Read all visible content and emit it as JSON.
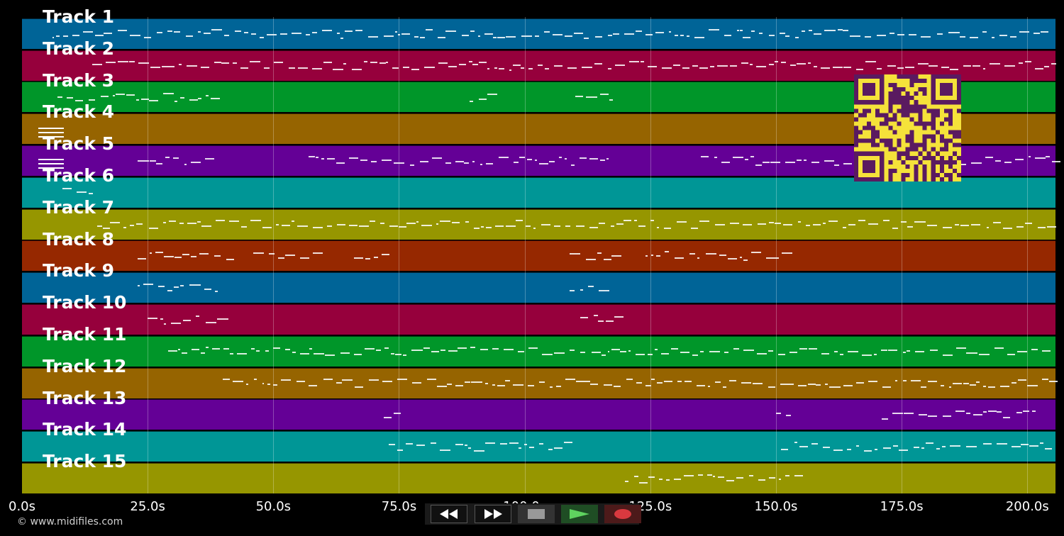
{
  "tracks": [
    {
      "label": "Track 1",
      "color": "#006497"
    },
    {
      "label": "Track 2",
      "color": "#96003c"
    },
    {
      "label": "Track 3",
      "color": "#009629"
    },
    {
      "label": "Track 4",
      "color": "#966400"
    },
    {
      "label": "Track 5",
      "color": "#640096"
    },
    {
      "label": "Track 6",
      "color": "#009696"
    },
    {
      "label": "Track 7",
      "color": "#969600"
    },
    {
      "label": "Track 8",
      "color": "#962800"
    },
    {
      "label": "Track 9",
      "color": "#006497"
    },
    {
      "label": "Track 10",
      "color": "#96003c"
    },
    {
      "label": "Track 11",
      "color": "#009629"
    },
    {
      "label": "Track 12",
      "color": "#966400"
    },
    {
      "label": "Track 13",
      "color": "#640096"
    },
    {
      "label": "Track 14",
      "color": "#009696"
    },
    {
      "label": "Track 15",
      "color": "#969600"
    }
  ],
  "timeline": {
    "ticks": [
      "0.0s",
      "25.0s",
      "50.0s",
      "75.0s",
      "100.0s",
      "125.0s",
      "150.0s",
      "175.0s",
      "200.0s"
    ],
    "max_seconds": 205.6
  },
  "note_activity": [
    [
      [
        6,
        205
      ]
    ],
    [
      [
        14,
        205
      ]
    ],
    [
      [
        7,
        39
      ],
      [
        89,
        93
      ],
      [
        110,
        117
      ]
    ],
    [],
    [
      [
        23,
        39
      ],
      [
        57,
        117
      ],
      [
        135,
        205
      ]
    ],
    [
      [
        8,
        14
      ]
    ],
    [
      [
        15,
        205
      ]
    ],
    [
      [
        23,
        41
      ],
      [
        46,
        58
      ],
      [
        66,
        74
      ],
      [
        109,
        119
      ],
      [
        124,
        152
      ]
    ],
    [
      [
        23,
        39
      ],
      [
        109,
        117
      ]
    ],
    [
      [
        25,
        40
      ],
      [
        111,
        118
      ]
    ],
    [
      [
        29,
        205
      ]
    ],
    [
      [
        40,
        205
      ]
    ],
    [
      [
        72,
        74
      ],
      [
        150,
        152
      ],
      [
        171,
        202
      ]
    ],
    [
      [
        73,
        109
      ],
      [
        151,
        205
      ]
    ],
    [
      [
        120,
        154
      ]
    ]
  ],
  "transport": {
    "buttons": [
      "rewind-icon",
      "fast-forward-icon",
      "stop-icon",
      "play-icon",
      "record-icon"
    ],
    "play_color": "#5fd35f",
    "record_color": "#d9393f"
  },
  "qr": {
    "fg": "#5a1a60",
    "bg": "#f5e23a"
  },
  "footer": {
    "copyright": "© www.midifiles.com"
  }
}
